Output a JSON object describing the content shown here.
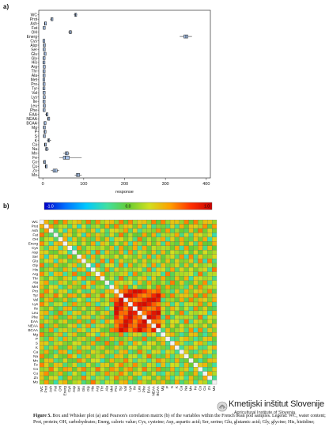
{
  "panel_a_label": "a)",
  "panel_b_label": "b)",
  "chart_data": [
    {
      "type": "boxplot",
      "xlabel": "response",
      "ylabel": "",
      "xlim": [
        -10,
        410
      ],
      "xticks": [
        0,
        100,
        200,
        300,
        400
      ],
      "box_color": "#a9c4ea",
      "categories": [
        "WC",
        "Prot",
        "Ash",
        "Fat",
        "OH",
        "Energ",
        "Cys",
        "Asp",
        "Ser",
        "Glu",
        "Gly",
        "His",
        "Arg",
        "Thr",
        "Ala",
        "Met",
        "Pro",
        "Tyr",
        "Val",
        "Lys",
        "Ile",
        "Leu",
        "Phe",
        "EAA",
        "NEAA",
        "BCAA",
        "Mg",
        "P",
        "S",
        "K",
        "Ca",
        "Na",
        "Mn",
        "Fe",
        "Co",
        "Cu",
        "Zn",
        "Mo"
      ],
      "values": [
        {
          "min": 76,
          "q1": 78,
          "median": 80,
          "q3": 82,
          "max": 84
        },
        {
          "min": 18,
          "q1": 20,
          "median": 21,
          "q3": 22,
          "max": 24
        },
        {
          "min": 3,
          "q1": 4,
          "median": 4.5,
          "q3": 5,
          "max": 6
        },
        {
          "min": 0.5,
          "q1": 1,
          "median": 1.2,
          "q3": 1.5,
          "max": 2
        },
        {
          "min": 62,
          "q1": 65,
          "median": 67,
          "q3": 69,
          "max": 72
        },
        {
          "min": 335,
          "q1": 345,
          "median": 350,
          "q3": 355,
          "max": 365
        },
        {
          "min": 0.1,
          "q1": 0.2,
          "median": 0.3,
          "q3": 0.4,
          "max": 0.5
        },
        {
          "min": 1,
          "q1": 1.5,
          "median": 2,
          "q3": 2.5,
          "max": 3
        },
        {
          "min": 0.5,
          "q1": 1,
          "median": 1.2,
          "q3": 1.4,
          "max": 2
        },
        {
          "min": 2,
          "q1": 3,
          "median": 3.5,
          "q3": 4,
          "max": 5
        },
        {
          "min": 0.5,
          "q1": 0.8,
          "median": 1,
          "q3": 1.2,
          "max": 1.5
        },
        {
          "min": 0.3,
          "q1": 0.5,
          "median": 0.6,
          "q3": 0.7,
          "max": 1
        },
        {
          "min": 1,
          "q1": 1.2,
          "median": 1.4,
          "q3": 1.6,
          "max": 2
        },
        {
          "min": 0.5,
          "q1": 0.8,
          "median": 1,
          "q3": 1.2,
          "max": 1.5
        },
        {
          "min": 0.6,
          "q1": 0.8,
          "median": 1,
          "q3": 1.2,
          "max": 1.4
        },
        {
          "min": 0.1,
          "q1": 0.2,
          "median": 0.3,
          "q3": 0.4,
          "max": 0.5
        },
        {
          "min": 0.5,
          "q1": 0.8,
          "median": 1,
          "q3": 1.2,
          "max": 1.5
        },
        {
          "min": 0.3,
          "q1": 0.5,
          "median": 0.6,
          "q3": 0.7,
          "max": 1
        },
        {
          "min": 0.6,
          "q1": 0.9,
          "median": 1.1,
          "q3": 1.3,
          "max": 1.6
        },
        {
          "min": 1,
          "q1": 1.2,
          "median": 1.4,
          "q3": 1.6,
          "max": 2
        },
        {
          "min": 0.5,
          "q1": 0.8,
          "median": 1,
          "q3": 1.2,
          "max": 1.5
        },
        {
          "min": 1,
          "q1": 1.5,
          "median": 1.8,
          "q3": 2,
          "max": 2.5
        },
        {
          "min": 0.6,
          "q1": 0.9,
          "median": 1.1,
          "q3": 1.3,
          "max": 1.6
        },
        {
          "min": 6,
          "q1": 8,
          "median": 9,
          "q3": 10,
          "max": 12
        },
        {
          "min": 10,
          "q1": 12,
          "median": 13,
          "q3": 14,
          "max": 16
        },
        {
          "min": 2,
          "q1": 3,
          "median": 3.5,
          "q3": 4,
          "max": 5
        },
        {
          "min": 1,
          "q1": 1.5,
          "median": 2,
          "q3": 2.5,
          "max": 3
        },
        {
          "min": 2,
          "q1": 3,
          "median": 4,
          "q3": 5,
          "max": 6
        },
        {
          "min": 1,
          "q1": 1.5,
          "median": 2,
          "q3": 2.5,
          "max": 3
        },
        {
          "min": 10,
          "q1": 12,
          "median": 14,
          "q3": 16,
          "max": 20
        },
        {
          "min": 3,
          "q1": 4,
          "median": 5,
          "q3": 6,
          "max": 7
        },
        {
          "min": 5,
          "q1": 7,
          "median": 8,
          "q3": 10,
          "max": 15
        },
        {
          "min": 50,
          "q1": 55,
          "median": 58,
          "q3": 62,
          "max": 65
        },
        {
          "min": 40,
          "q1": 50,
          "median": 55,
          "q3": 65,
          "max": 95
        },
        {
          "min": 1,
          "q1": 2,
          "median": 3,
          "q3": 4,
          "max": 5
        },
        {
          "min": 5,
          "q1": 6,
          "median": 7,
          "q3": 8,
          "max": 10
        },
        {
          "min": 20,
          "q1": 25,
          "median": 30,
          "q3": 35,
          "max": 40
        },
        {
          "min": 78,
          "q1": 82,
          "median": 86,
          "q3": 90,
          "max": 95
        }
      ]
    },
    {
      "type": "heatmap",
      "title": "",
      "colorbar_min": "-1.0",
      "colorbar_mid": "0.0",
      "colorbar_max": "1.0",
      "vmin": -1,
      "vmax": 1,
      "colorscale": [
        "#0000c8",
        "#0070ff",
        "#00c8ff",
        "#40e0a0",
        "#66cc33",
        "#d0e020",
        "#ffa000",
        "#ff3000",
        "#c80000"
      ],
      "labels": [
        "WC",
        "Prot",
        "Ash",
        "Fat",
        "OH",
        "Energ",
        "Cys",
        "Asp",
        "Ser",
        "Glu",
        "Gly",
        "His",
        "Arg",
        "Thr",
        "Ala",
        "Met",
        "Pro",
        "Tyr",
        "Val",
        "Lys",
        "Ile",
        "Leu",
        "Phe",
        "EAA",
        "NEAA",
        "BCAA",
        "Mg",
        "P",
        "S",
        "K",
        "Ca",
        "Na",
        "Mn",
        "Fe",
        "Co",
        "Cu",
        "Zn",
        "Mo"
      ]
    }
  ],
  "caption": {
    "prefix": "Figure 5.",
    "text": " Box and Whisker plot (a) and Pearson's correlation matrix (b) of the variables within the French bean pod samples. Legend: WC, water content; Prot, protein; OH, carbohydrates; Energ, caloric value; Cys, cysteine; Asp, aspartic acid; Ser, serine; Glu, glutamic acid; Gly, glycine; His, histidine;"
  },
  "watermark": {
    "title": "Kmetijski inštitut Slovenije",
    "subtitle": "Agricultural Institute of Slovenia"
  }
}
